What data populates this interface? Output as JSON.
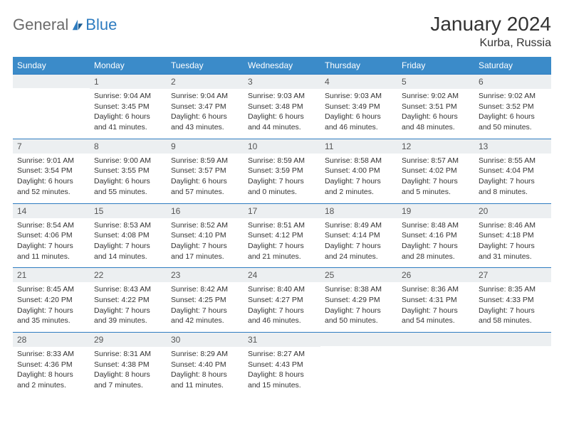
{
  "logo": {
    "general": "General",
    "blue": "Blue"
  },
  "title": "January 2024",
  "location": "Kurba, Russia",
  "colors": {
    "header_bg": "#3b8bc9",
    "header_text": "#ffffff",
    "date_bg": "#eceff1",
    "date_border": "#2e7cc0",
    "body_text": "#333333",
    "logo_gray": "#6b6b6b",
    "logo_blue": "#2e7cc0"
  },
  "day_names": [
    "Sunday",
    "Monday",
    "Tuesday",
    "Wednesday",
    "Thursday",
    "Friday",
    "Saturday"
  ],
  "weeks": [
    [
      null,
      {
        "d": "1",
        "sr": "9:04 AM",
        "ss": "3:45 PM",
        "dl": "6 hours and 41 minutes."
      },
      {
        "d": "2",
        "sr": "9:04 AM",
        "ss": "3:47 PM",
        "dl": "6 hours and 43 minutes."
      },
      {
        "d": "3",
        "sr": "9:03 AM",
        "ss": "3:48 PM",
        "dl": "6 hours and 44 minutes."
      },
      {
        "d": "4",
        "sr": "9:03 AM",
        "ss": "3:49 PM",
        "dl": "6 hours and 46 minutes."
      },
      {
        "d": "5",
        "sr": "9:02 AM",
        "ss": "3:51 PM",
        "dl": "6 hours and 48 minutes."
      },
      {
        "d": "6",
        "sr": "9:02 AM",
        "ss": "3:52 PM",
        "dl": "6 hours and 50 minutes."
      }
    ],
    [
      {
        "d": "7",
        "sr": "9:01 AM",
        "ss": "3:54 PM",
        "dl": "6 hours and 52 minutes."
      },
      {
        "d": "8",
        "sr": "9:00 AM",
        "ss": "3:55 PM",
        "dl": "6 hours and 55 minutes."
      },
      {
        "d": "9",
        "sr": "8:59 AM",
        "ss": "3:57 PM",
        "dl": "6 hours and 57 minutes."
      },
      {
        "d": "10",
        "sr": "8:59 AM",
        "ss": "3:59 PM",
        "dl": "7 hours and 0 minutes."
      },
      {
        "d": "11",
        "sr": "8:58 AM",
        "ss": "4:00 PM",
        "dl": "7 hours and 2 minutes."
      },
      {
        "d": "12",
        "sr": "8:57 AM",
        "ss": "4:02 PM",
        "dl": "7 hours and 5 minutes."
      },
      {
        "d": "13",
        "sr": "8:55 AM",
        "ss": "4:04 PM",
        "dl": "7 hours and 8 minutes."
      }
    ],
    [
      {
        "d": "14",
        "sr": "8:54 AM",
        "ss": "4:06 PM",
        "dl": "7 hours and 11 minutes."
      },
      {
        "d": "15",
        "sr": "8:53 AM",
        "ss": "4:08 PM",
        "dl": "7 hours and 14 minutes."
      },
      {
        "d": "16",
        "sr": "8:52 AM",
        "ss": "4:10 PM",
        "dl": "7 hours and 17 minutes."
      },
      {
        "d": "17",
        "sr": "8:51 AM",
        "ss": "4:12 PM",
        "dl": "7 hours and 21 minutes."
      },
      {
        "d": "18",
        "sr": "8:49 AM",
        "ss": "4:14 PM",
        "dl": "7 hours and 24 minutes."
      },
      {
        "d": "19",
        "sr": "8:48 AM",
        "ss": "4:16 PM",
        "dl": "7 hours and 28 minutes."
      },
      {
        "d": "20",
        "sr": "8:46 AM",
        "ss": "4:18 PM",
        "dl": "7 hours and 31 minutes."
      }
    ],
    [
      {
        "d": "21",
        "sr": "8:45 AM",
        "ss": "4:20 PM",
        "dl": "7 hours and 35 minutes."
      },
      {
        "d": "22",
        "sr": "8:43 AM",
        "ss": "4:22 PM",
        "dl": "7 hours and 39 minutes."
      },
      {
        "d": "23",
        "sr": "8:42 AM",
        "ss": "4:25 PM",
        "dl": "7 hours and 42 minutes."
      },
      {
        "d": "24",
        "sr": "8:40 AM",
        "ss": "4:27 PM",
        "dl": "7 hours and 46 minutes."
      },
      {
        "d": "25",
        "sr": "8:38 AM",
        "ss": "4:29 PM",
        "dl": "7 hours and 50 minutes."
      },
      {
        "d": "26",
        "sr": "8:36 AM",
        "ss": "4:31 PM",
        "dl": "7 hours and 54 minutes."
      },
      {
        "d": "27",
        "sr": "8:35 AM",
        "ss": "4:33 PM",
        "dl": "7 hours and 58 minutes."
      }
    ],
    [
      {
        "d": "28",
        "sr": "8:33 AM",
        "ss": "4:36 PM",
        "dl": "8 hours and 2 minutes."
      },
      {
        "d": "29",
        "sr": "8:31 AM",
        "ss": "4:38 PM",
        "dl": "8 hours and 7 minutes."
      },
      {
        "d": "30",
        "sr": "8:29 AM",
        "ss": "4:40 PM",
        "dl": "8 hours and 11 minutes."
      },
      {
        "d": "31",
        "sr": "8:27 AM",
        "ss": "4:43 PM",
        "dl": "8 hours and 15 minutes."
      },
      null,
      null,
      null
    ]
  ],
  "labels": {
    "sunrise": "Sunrise:",
    "sunset": "Sunset:",
    "daylight": "Daylight:"
  }
}
